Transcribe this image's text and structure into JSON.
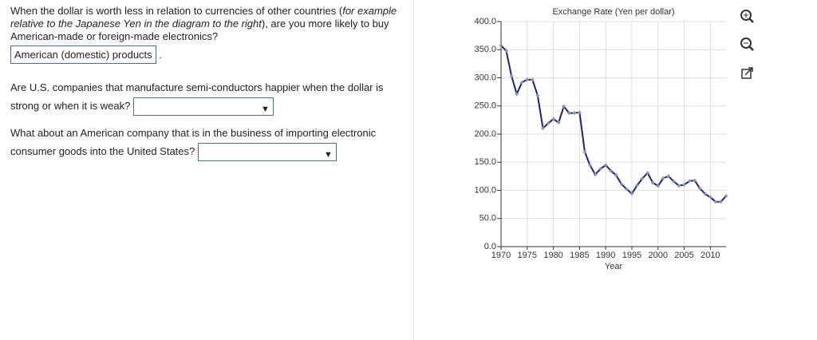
{
  "questions": [
    {
      "text_before": "When the dollar is worth less in relation to currencies of other countries (",
      "text_italic": "for example relative to the Japanese Yen in the diagram to the right",
      "text_after": "), are you more likely to buy American-made or foreign-made electronics?",
      "answer": "American (domestic) products",
      "answer_suffix": "."
    },
    {
      "text": "Are U.S. companies that manufacture semi-conductors happier when the dollar is strong or when it is weak?"
    },
    {
      "text": "What about an American company that is in the business of importing electronic consumer goods into the United States?"
    }
  ],
  "chart_data": {
    "type": "line",
    "title": "Exchange Rate (Yen per dollar)",
    "xlabel": "Year",
    "x": [
      1970,
      1971,
      1972,
      1973,
      1974,
      1975,
      1976,
      1977,
      1978,
      1979,
      1980,
      1981,
      1982,
      1983,
      1984,
      1985,
      1986,
      1987,
      1988,
      1989,
      1990,
      1991,
      1992,
      1993,
      1994,
      1995,
      1996,
      1997,
      1998,
      1999,
      2000,
      2001,
      2002,
      2003,
      2004,
      2005,
      2006,
      2007,
      2008,
      2009,
      2010,
      2011,
      2012,
      2013
    ],
    "values": [
      357.6,
      347.8,
      303.1,
      271.3,
      291.8,
      296.8,
      296.6,
      268.5,
      210.4,
      219.1,
      226.7,
      220.5,
      249.1,
      237.5,
      237.5,
      238.5,
      168.5,
      144.6,
      128.2,
      138.1,
      144.8,
      134.7,
      126.7,
      111.2,
      102.2,
      94.1,
      108.8,
      121.1,
      130.9,
      113.7,
      107.8,
      121.6,
      125.2,
      115.9,
      108.2,
      110.1,
      116.3,
      117.8,
      103.4,
      93.6,
      87.8,
      79.7,
      79.8,
      90.0
    ],
    "color": "#1a237e",
    "marker_color": "#8a97a8",
    "xlim": [
      1970,
      2013
    ],
    "xticks": [
      1970,
      1975,
      1980,
      1985,
      1990,
      1995,
      2000,
      2005,
      2010
    ],
    "ylim": [
      0,
      400
    ],
    "yticks": [
      {
        "value": 0,
        "label": "0.0"
      },
      {
        "value": 50,
        "label": "50.0"
      },
      {
        "value": 100,
        "label": "100.0"
      },
      {
        "value": 150,
        "label": "150.0"
      },
      {
        "value": 200,
        "label": "200.0"
      },
      {
        "value": 250,
        "label": "250.0"
      },
      {
        "value": 300,
        "label": "300.0"
      },
      {
        "value": 350,
        "label": "350.0"
      },
      {
        "value": 400,
        "label": "400.0"
      }
    ],
    "grid": true
  }
}
